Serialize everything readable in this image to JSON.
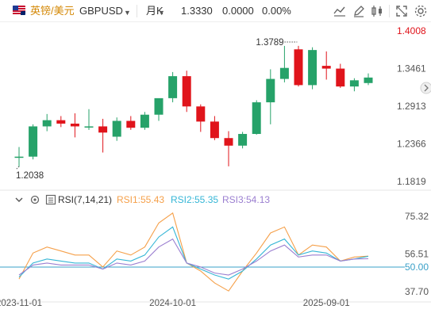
{
  "toolbar": {
    "name": "英镑/美元",
    "code": "GBPUSD",
    "period": "月K",
    "price": "1.3330",
    "change": "0.0000",
    "change_pct": "0.00%",
    "icons": [
      "draw-line-icon",
      "edit-icon",
      "compare-icon",
      "fullscreen-icon",
      "settings-icon"
    ]
  },
  "indicator": {
    "name": "RSI(7,14,21)",
    "rsi1_label": "RSI1:55.43",
    "rsi2_label": "RSI2:55.35",
    "rsi3_label": "RSI3:54.13"
  },
  "colors": {
    "up": "#26a269",
    "down": "#e0141b",
    "rsi1": "#f5a04a",
    "rsi2": "#35b6d6",
    "rsi3": "#9b7fd0",
    "baseline": "#3aa0c8"
  },
  "chart_data": [
    {
      "type": "candlestick",
      "title": "",
      "ylim": [
        1.1819,
        1.4008
      ],
      "yticks": [
        "1.4008",
        "1.3461",
        "1.2913",
        "1.2366",
        "1.1819"
      ],
      "annotations": [
        {
          "label": "1.3789",
          "value": 1.3789
        },
        {
          "label": "1.2038",
          "value": 1.2038
        }
      ],
      "candles": [
        {
          "o": 1.217,
          "h": 1.232,
          "l": 1.203,
          "c": 1.218
        },
        {
          "o": 1.218,
          "h": 1.265,
          "l": 1.214,
          "c": 1.262
        },
        {
          "o": 1.262,
          "h": 1.28,
          "l": 1.255,
          "c": 1.271
        },
        {
          "o": 1.271,
          "h": 1.277,
          "l": 1.261,
          "c": 1.266
        },
        {
          "o": 1.266,
          "h": 1.281,
          "l": 1.246,
          "c": 1.262
        },
        {
          "o": 1.262,
          "h": 1.287,
          "l": 1.257,
          "c": 1.262
        },
        {
          "o": 1.262,
          "h": 1.273,
          "l": 1.224,
          "c": 1.253
        },
        {
          "o": 1.247,
          "h": 1.275,
          "l": 1.241,
          "c": 1.27
        },
        {
          "o": 1.27,
          "h": 1.277,
          "l": 1.257,
          "c": 1.26
        },
        {
          "o": 1.26,
          "h": 1.283,
          "l": 1.257,
          "c": 1.279
        },
        {
          "o": 1.279,
          "h": 1.302,
          "l": 1.27,
          "c": 1.303
        },
        {
          "o": 1.303,
          "h": 1.341,
          "l": 1.297,
          "c": 1.335
        },
        {
          "o": 1.335,
          "h": 1.343,
          "l": 1.283,
          "c": 1.291
        },
        {
          "o": 1.291,
          "h": 1.294,
          "l": 1.254,
          "c": 1.269
        },
        {
          "o": 1.269,
          "h": 1.277,
          "l": 1.242,
          "c": 1.245
        },
        {
          "o": 1.245,
          "h": 1.255,
          "l": 1.204,
          "c": 1.234
        },
        {
          "o": 1.234,
          "h": 1.254,
          "l": 1.23,
          "c": 1.251
        },
        {
          "o": 1.251,
          "h": 1.3,
          "l": 1.25,
          "c": 1.297
        },
        {
          "o": 1.297,
          "h": 1.345,
          "l": 1.265,
          "c": 1.331
        },
        {
          "o": 1.331,
          "h": 1.379,
          "l": 1.326,
          "c": 1.347
        },
        {
          "o": 1.374,
          "h": 1.379,
          "l": 1.32,
          "c": 1.322
        },
        {
          "o": 1.322,
          "h": 1.377,
          "l": 1.316,
          "c": 1.373
        },
        {
          "o": 1.35,
          "h": 1.371,
          "l": 1.33,
          "c": 1.346
        },
        {
          "o": 1.346,
          "h": 1.353,
          "l": 1.318,
          "c": 1.32
        },
        {
          "o": 1.32,
          "h": 1.332,
          "l": 1.313,
          "c": 1.329
        },
        {
          "o": 1.325,
          "h": 1.339,
          "l": 1.322,
          "c": 1.333
        }
      ]
    },
    {
      "type": "line",
      "title": "RSI(7,14,21)",
      "ylim": [
        37.7,
        75.32
      ],
      "yticks": [
        "75.32",
        "56.51",
        "50.00",
        "37.70"
      ],
      "baseline": 50,
      "x_tick_labels": [
        {
          "label": "2023-11-01",
          "index": 0
        },
        {
          "label": "2024-10-01",
          "index": 11
        },
        {
          "label": "2025-09-01",
          "index": 22
        }
      ],
      "series": [
        {
          "name": "RSI1",
          "values": [
            44,
            57,
            60,
            58,
            56,
            56,
            50,
            58,
            56,
            60,
            72,
            77,
            52,
            48,
            42,
            38,
            48,
            57,
            67,
            70,
            56,
            61,
            60,
            53,
            55,
            55.43
          ]
        },
        {
          "name": "RSI2",
          "values": [
            45,
            52,
            54,
            53,
            52,
            52,
            49,
            54,
            53,
            56,
            65,
            70,
            52,
            49,
            46,
            44,
            48,
            54,
            61,
            64,
            56,
            58,
            57,
            53,
            54,
            55.35
          ]
        },
        {
          "name": "RSI3",
          "values": [
            46,
            51,
            52,
            51,
            51,
            51,
            49,
            52,
            51,
            53,
            60,
            64,
            52,
            50,
            47,
            46,
            49,
            53,
            58,
            61,
            55,
            56,
            56,
            53,
            54,
            54.13
          ]
        }
      ]
    }
  ]
}
